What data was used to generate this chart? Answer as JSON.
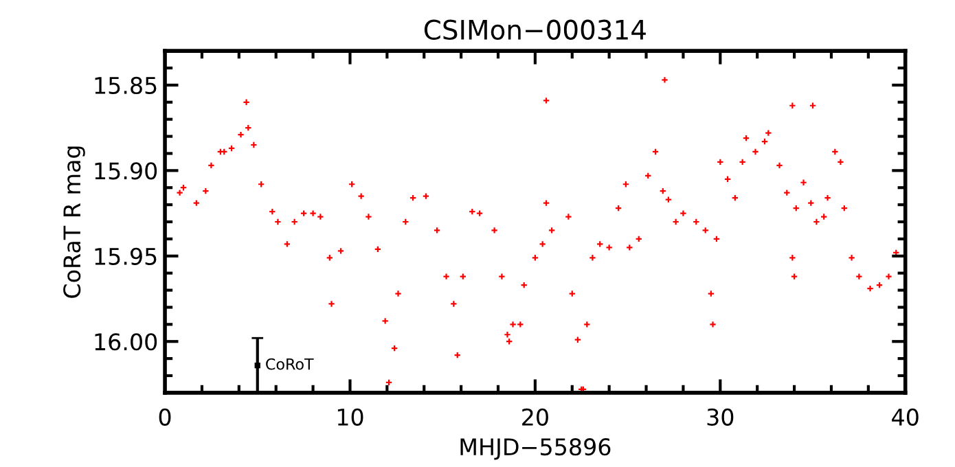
{
  "chart_data": {
    "type": "scatter",
    "title": "CSIMon−000314",
    "xlabel": "MHJD−55896",
    "ylabel": "CoRaT R mag",
    "xlim": [
      0,
      40
    ],
    "xticks": [
      0,
      10,
      20,
      30,
      40
    ],
    "ylim": [
      16.03,
      15.83
    ],
    "yticks": [
      15.85,
      {
        "value": 15.9,
        "label": "15.90"
      },
      15.95,
      {
        "value": 16.0,
        "label": "16.00"
      }
    ],
    "grid": false,
    "legend": false,
    "marker": "cross",
    "series": [
      {
        "color": "#ff0000",
        "x": [
          0.8,
          1.0,
          1.7,
          2.2,
          2.5,
          3.0,
          3.2,
          3.6,
          4.1,
          4.4,
          4.5,
          4.8,
          5.2,
          5.8,
          6.1,
          6.6,
          7.0,
          7.5,
          8.0,
          8.4,
          8.9,
          9.0,
          9.5,
          10.1,
          10.6,
          11.0,
          11.5,
          11.9,
          12.1,
          12.4,
          12.6,
          13.0,
          13.4,
          14.1,
          14.7,
          15.2,
          15.6,
          15.8,
          16.1,
          16.6,
          17.0,
          17.8,
          18.2,
          18.5,
          18.6,
          18.8,
          19.2,
          19.4,
          20.0,
          20.4,
          20.6,
          20.6,
          20.9,
          21.8,
          22.0,
          22.3,
          22.5,
          22.6,
          22.8,
          23.1,
          23.5,
          24.0,
          24.5,
          24.9,
          25.1,
          25.6,
          26.1,
          26.5,
          26.9,
          27.0,
          27.2,
          27.6,
          28.0,
          28.7,
          29.2,
          29.5,
          29.6,
          29.8,
          30.0,
          30.4,
          30.8,
          31.2,
          31.4,
          31.9,
          32.4,
          32.6,
          33.2,
          33.6,
          33.9,
          33.9,
          34.0,
          34.1,
          34.5,
          34.9,
          35.0,
          35.2,
          35.6,
          35.8,
          36.2,
          36.5,
          36.7,
          37.1,
          37.5,
          38.1,
          38.6,
          39.1,
          39.5
        ],
        "values": [
          15.913,
          15.91,
          15.919,
          15.912,
          15.897,
          15.889,
          15.889,
          15.887,
          15.879,
          15.86,
          15.875,
          15.885,
          15.908,
          15.924,
          15.93,
          15.943,
          15.93,
          15.925,
          15.925,
          15.927,
          15.951,
          15.978,
          15.947,
          15.908,
          15.915,
          15.927,
          15.946,
          15.988,
          16.024,
          16.004,
          15.972,
          15.93,
          15.916,
          15.915,
          15.935,
          15.962,
          15.978,
          16.008,
          15.962,
          15.924,
          15.925,
          15.935,
          15.962,
          15.996,
          16.0,
          15.99,
          15.99,
          15.967,
          15.951,
          15.943,
          15.919,
          15.859,
          15.935,
          15.927,
          15.972,
          15.999,
          16.028,
          16.028,
          15.99,
          15.951,
          15.943,
          15.945,
          15.922,
          15.908,
          15.945,
          15.94,
          15.903,
          15.889,
          15.912,
          15.847,
          15.917,
          15.93,
          15.925,
          15.93,
          15.935,
          15.972,
          15.99,
          15.94,
          15.895,
          15.905,
          15.916,
          15.895,
          15.881,
          15.889,
          15.883,
          15.878,
          15.897,
          15.913,
          15.951,
          15.862,
          15.962,
          15.922,
          15.907,
          15.919,
          15.862,
          15.93,
          15.927,
          15.916,
          15.889,
          15.895,
          15.922,
          15.951,
          15.962,
          15.969,
          15.967,
          15.962,
          15.948
        ]
      },
      {
        "color": "#000000",
        "x": [
          5.0
        ],
        "values": [
          16.014
        ],
        "errors": [
          0.016
        ],
        "marker": "square"
      }
    ],
    "annotations": [
      {
        "text": "CoRoT",
        "x": 5.0,
        "y": 16.014
      }
    ]
  }
}
